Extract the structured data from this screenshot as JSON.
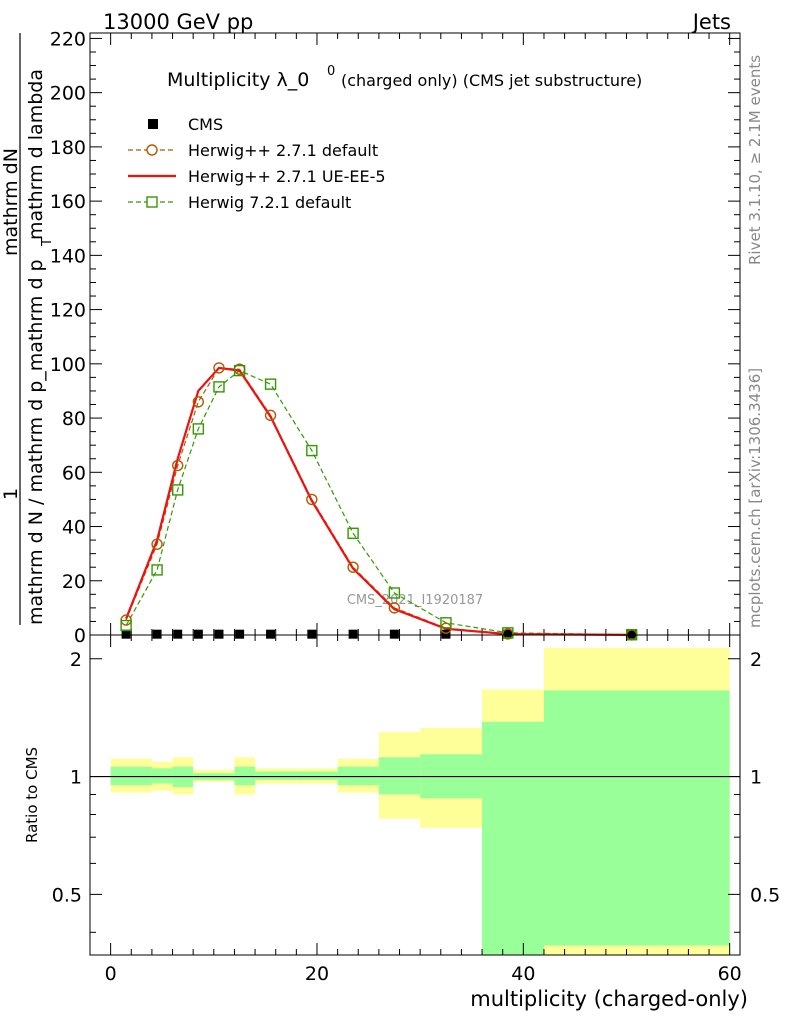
{
  "header": {
    "left": "13000 GeV pp",
    "right": "Jets"
  },
  "title": {
    "main": "Multiplicity λ_0",
    "superscript": "0",
    "extra": "(charged only) (CMS jet substructure)"
  },
  "ylabel_main": {
    "fraction_one": "1",
    "denominator": "mathrm d N / mathrm d p_mathrm d p",
    "numerator": "mathrm dN",
    "tail": "mathrm d lambda",
    "sub_T": "T"
  },
  "ylabel_ratio": "Ratio to CMS",
  "xlabel": "multiplicity (charged-only)",
  "watermark": "CMS_2021_I1920187",
  "side_right_top": "Rivet 3.1.10, ≥ 2.1M events",
  "side_right_bottom": "mcplots.cern.ch [arXiv:1306.3436]",
  "colors": {
    "cms": "#000000",
    "herwig271_default": "#b35900",
    "herwig271_ueee5": "#ee1111",
    "herwig721": "#339900",
    "band_outer": "#ffff99",
    "band_inner": "#99ff99"
  },
  "chart_data": [
    {
      "type": "line",
      "panel": "main",
      "xlim": [
        -2,
        61
      ],
      "ylim": [
        0,
        222
      ],
      "x_ticks": [
        0,
        20,
        40,
        60
      ],
      "y_ticks": [
        0,
        20,
        40,
        60,
        80,
        100,
        120,
        140,
        160,
        180,
        200,
        220
      ],
      "y_tick_labels": [
        "0",
        "20",
        "40",
        "60",
        "80",
        "100",
        "120",
        "140",
        "160",
        "180",
        "200",
        "220"
      ],
      "legend_position": "top-left",
      "series": [
        {
          "name": "CMS",
          "marker": "square",
          "x": [
            1.5,
            4.5,
            6.5,
            8.5,
            10.5,
            12.5,
            15.5,
            19.5,
            23.5,
            27.5,
            32.5,
            38.5,
            50.5
          ],
          "y": [
            0.3,
            0.3,
            0.3,
            0.3,
            0.3,
            0.3,
            0.3,
            0.3,
            0.3,
            0.3,
            0.3,
            0.3,
            0.3
          ]
        },
        {
          "name": "Herwig++ 2.7.1 default",
          "marker": "circle",
          "x": [
            1.5,
            4.5,
            6.5,
            8.5,
            10.5,
            12.5,
            15.5,
            19.5,
            23.5,
            27.5,
            32.5,
            38.5,
            50.5
          ],
          "y": [
            5.5,
            33.5,
            62.5,
            86,
            98.5,
            98,
            81,
            50,
            25,
            10,
            2.5,
            0.4,
            0.05
          ]
        },
        {
          "name": "Herwig++ 2.7.1 UE-EE-5",
          "marker": "none",
          "x": [
            1.5,
            4.5,
            6.5,
            8.5,
            10.5,
            12.5,
            15.5,
            19.5,
            23.5,
            27.5,
            32.5,
            38.5,
            50.5
          ],
          "y": [
            6,
            35,
            65,
            90,
            98.5,
            97.5,
            80.5,
            49.5,
            24.5,
            9.5,
            2.3,
            0.35,
            0.05
          ]
        },
        {
          "name": "Herwig 7.2.1 default",
          "marker": "open-square",
          "x": [
            1.5,
            4.5,
            6.5,
            8.5,
            10.5,
            12.5,
            15.5,
            19.5,
            23.5,
            27.5,
            32.5,
            38.5,
            50.5
          ],
          "y": [
            3.5,
            24,
            53.5,
            76,
            91.5,
            97.5,
            92.5,
            68,
            37.5,
            15.5,
            4.5,
            0.8,
            0.1
          ]
        }
      ]
    },
    {
      "type": "area",
      "panel": "ratio",
      "ylabel": "Ratio to CMS",
      "xlabel": "multiplicity (charged-only)",
      "xlim": [
        -2,
        61
      ],
      "scale": "log",
      "ylim": [
        0.35,
        2.3
      ],
      "y_ticks": [
        0.5,
        1,
        2
      ],
      "y_tick_labels": [
        "0.5",
        "1",
        "2"
      ],
      "x_ticks": [
        0,
        20,
        40,
        60
      ],
      "x_tick_labels": [
        "0",
        "20",
        "40",
        "60"
      ],
      "reference_line": 1,
      "bins": [
        {
          "x0": 0,
          "x1": 4,
          "outer": [
            0.91,
            1.11
          ],
          "inner": [
            0.95,
            1.06
          ]
        },
        {
          "x0": 4,
          "x1": 6,
          "outer": [
            0.92,
            1.09
          ],
          "inner": [
            0.96,
            1.05
          ]
        },
        {
          "x0": 6,
          "x1": 8,
          "outer": [
            0.9,
            1.12
          ],
          "inner": [
            0.94,
            1.06
          ]
        },
        {
          "x0": 8,
          "x1": 10,
          "outer": [
            0.97,
            1.04
          ],
          "inner": [
            0.98,
            1.02
          ]
        },
        {
          "x0": 10,
          "x1": 12,
          "outer": [
            0.97,
            1.04
          ],
          "inner": [
            0.98,
            1.02
          ]
        },
        {
          "x0": 12,
          "x1": 14,
          "outer": [
            0.9,
            1.12
          ],
          "inner": [
            0.95,
            1.06
          ]
        },
        {
          "x0": 14,
          "x1": 18,
          "outer": [
            0.96,
            1.05
          ],
          "inner": [
            0.98,
            1.03
          ]
        },
        {
          "x0": 18,
          "x1": 22,
          "outer": [
            0.96,
            1.05
          ],
          "inner": [
            0.98,
            1.03
          ]
        },
        {
          "x0": 22,
          "x1": 26,
          "outer": [
            0.91,
            1.11
          ],
          "inner": [
            0.95,
            1.06
          ]
        },
        {
          "x0": 26,
          "x1": 30,
          "outer": [
            0.78,
            1.3
          ],
          "inner": [
            0.9,
            1.12
          ]
        },
        {
          "x0": 30,
          "x1": 36,
          "outer": [
            0.74,
            1.33
          ],
          "inner": [
            0.88,
            1.14
          ]
        },
        {
          "x0": 36,
          "x1": 42,
          "outer": [
            0.35,
            1.67
          ],
          "inner": [
            0.35,
            1.38
          ]
        },
        {
          "x0": 42,
          "x1": 60,
          "outer": [
            0.35,
            2.13
          ],
          "inner": [
            0.37,
            1.66
          ]
        }
      ]
    }
  ]
}
